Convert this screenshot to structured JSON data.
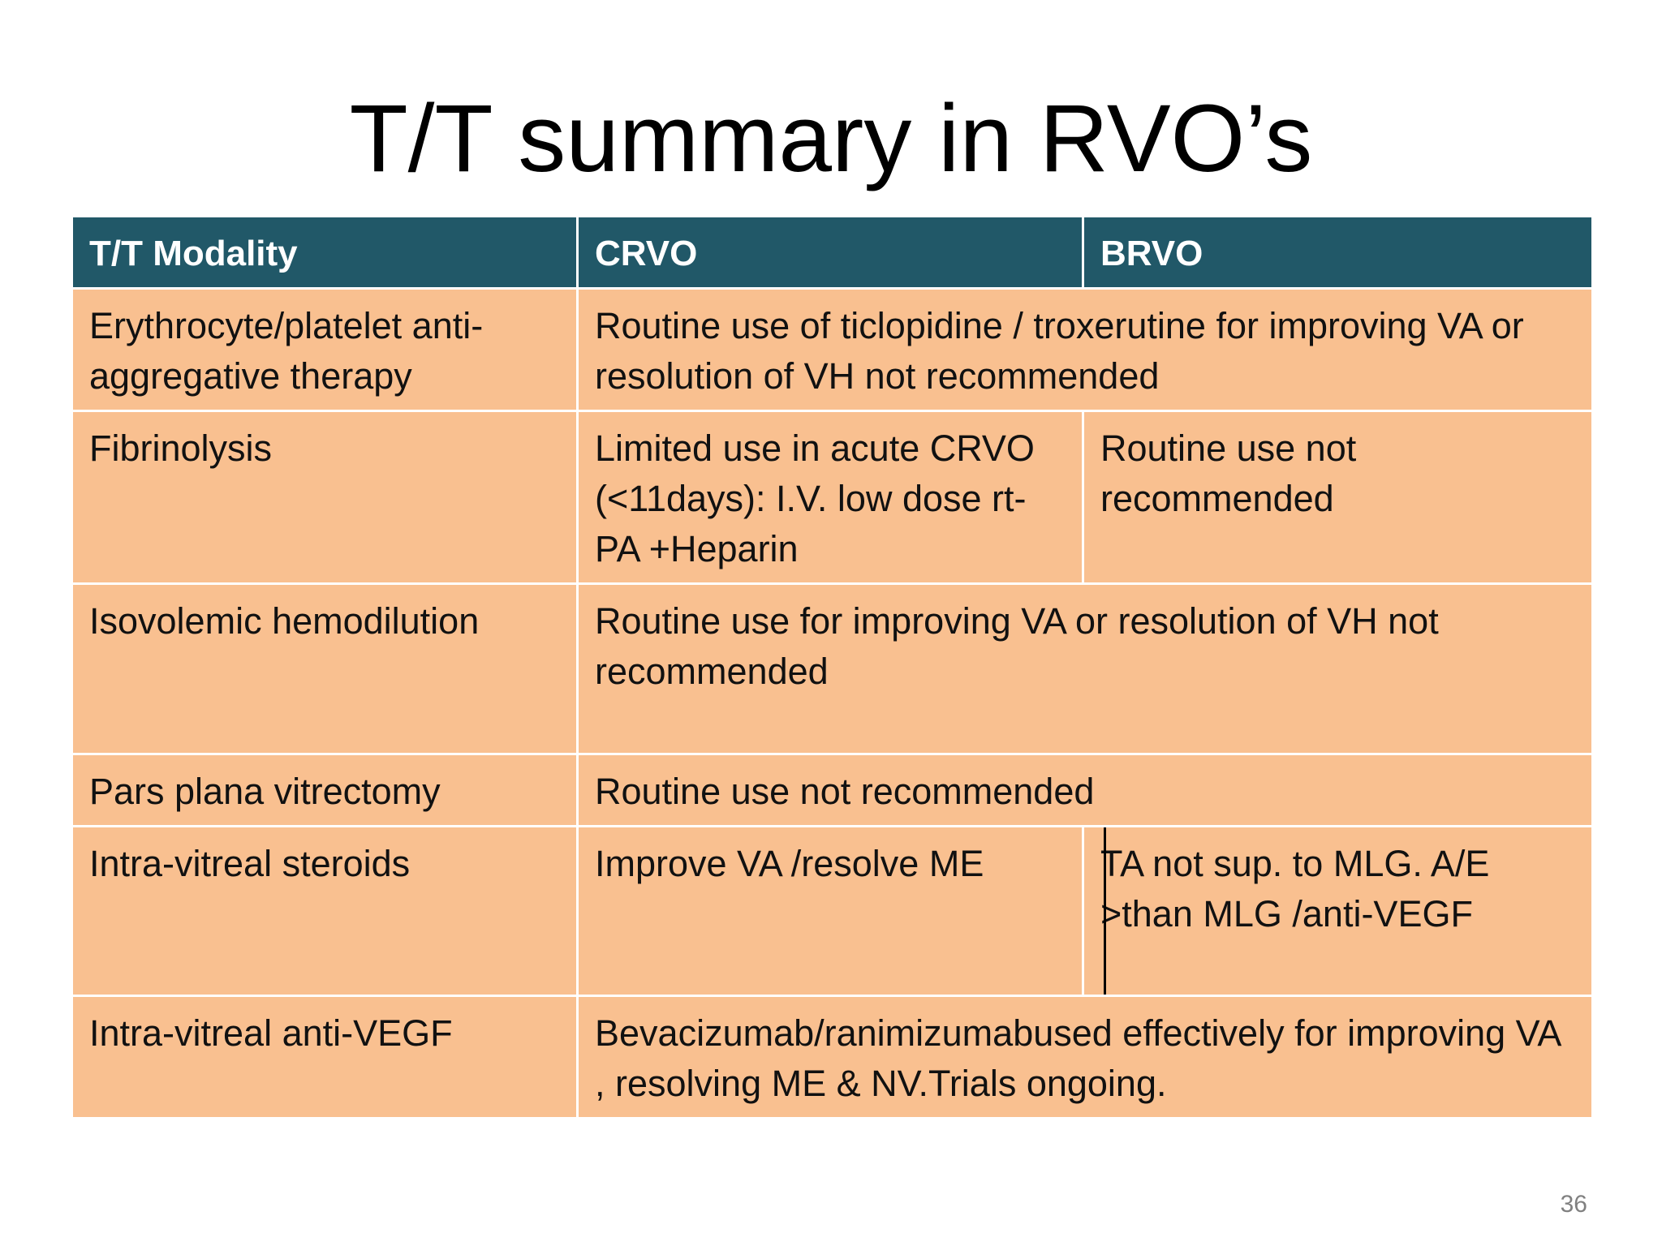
{
  "slide": {
    "title": "T/T summary in RVO’s",
    "page_number": "36"
  },
  "table": {
    "headers": {
      "modality": "T/T Modality",
      "crvo": "CRVO",
      "brvo": "BRVO"
    },
    "rows": [
      {
        "modality": "Erythrocyte/platelet anti-aggregative therapy",
        "combined": "Routine use of ticlopidine / troxerutine for  improving VA or resolution of VH not recommended"
      },
      {
        "modality": "Fibrinolysis",
        "crvo": "Limited use in acute CRVO (<11days): I.V. low dose rt-PA +Heparin",
        "brvo": "Routine use not recommended"
      },
      {
        "modality": "Isovolemic hemodilution",
        "combined": "Routine use for  improving VA or resolution of VH not recommended"
      },
      {
        "modality": "Pars plana vitrectomy",
        "combined": "Routine use not recommended"
      },
      {
        "modality": "Intra-vitreal steroids",
        "crvo": "Improve VA /resolve ME",
        "brvo": "TA not sup. to MLG. A/E >than  MLG /anti-VEGF"
      },
      {
        "modality": "Intra-vitreal anti-VEGF",
        "combined": "Bevacizumab/ranimizumabused effectively for improving VA , resolving ME & NV.Trials ongoing."
      }
    ]
  }
}
